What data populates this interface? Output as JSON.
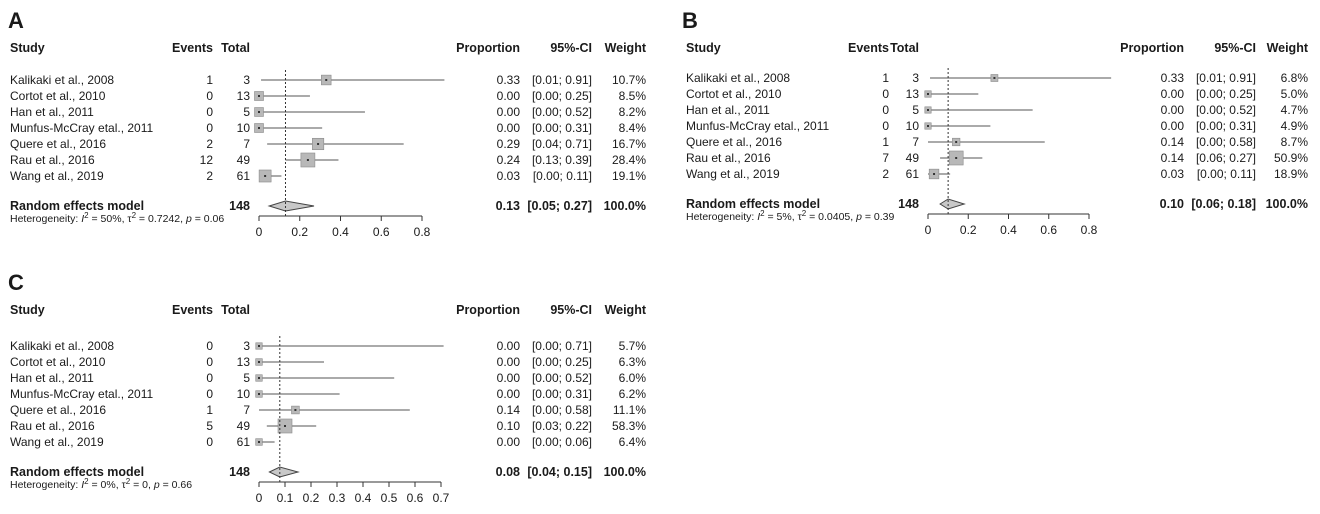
{
  "chart_data": [
    {
      "type": "forest",
      "label": "A",
      "headers": {
        "study": "Study",
        "events": "Events",
        "total": "Total",
        "proportion": "Proportion",
        "ci": "95%-CI",
        "weight": "Weight"
      },
      "xlim": [
        0,
        0.8
      ],
      "ticks": [
        "0",
        "0.2",
        "0.4",
        "0.6",
        "0.8"
      ],
      "studies": [
        {
          "study": "Kalikaki et al., 2008",
          "events": "1",
          "total": "3",
          "proportion": 0.33,
          "lower": 0.01,
          "upper": 0.91,
          "prop_text": "0.33",
          "ci_text": "[0.01; 0.91]",
          "weight": "10.7%"
        },
        {
          "study": "Cortot et al., 2010",
          "events": "0",
          "total": "13",
          "proportion": 0.0,
          "lower": 0.0,
          "upper": 0.25,
          "prop_text": "0.00",
          "ci_text": "[0.00; 0.25]",
          "weight": "8.5%"
        },
        {
          "study": "Han et al., 2011",
          "events": "0",
          "total": "5",
          "proportion": 0.0,
          "lower": 0.0,
          "upper": 0.52,
          "prop_text": "0.00",
          "ci_text": "[0.00; 0.52]",
          "weight": "8.2%"
        },
        {
          "study": "Munfus-McCray etal., 2011",
          "events": "0",
          "total": "10",
          "proportion": 0.0,
          "lower": 0.0,
          "upper": 0.31,
          "prop_text": "0.00",
          "ci_text": "[0.00; 0.31]",
          "weight": "8.4%"
        },
        {
          "study": "Quere et al., 2016",
          "events": "2",
          "total": "7",
          "proportion": 0.29,
          "lower": 0.04,
          "upper": 0.71,
          "prop_text": "0.29",
          "ci_text": "[0.04; 0.71]",
          "weight": "16.7%"
        },
        {
          "study": "Rau et al., 2016",
          "events": "12",
          "total": "49",
          "proportion": 0.24,
          "lower": 0.13,
          "upper": 0.39,
          "prop_text": "0.24",
          "ci_text": "[0.13; 0.39]",
          "weight": "28.4%"
        },
        {
          "study": "Wang et al., 2019",
          "events": "2",
          "total": "61",
          "proportion": 0.03,
          "lower": 0.0,
          "upper": 0.11,
          "prop_text": "0.03",
          "ci_text": "[0.00; 0.11]",
          "weight": "19.1%"
        }
      ],
      "pooled": {
        "label": "Random effects model",
        "total": "148",
        "estimate": 0.13,
        "lower": 0.05,
        "upper": 0.27,
        "prop_text": "0.13",
        "ci_text": "[0.05; 0.27]",
        "weight": "100.0%"
      },
      "heterogeneity": {
        "prefix": "Heterogeneity: ",
        "i2": "50%",
        "tau2": "0.7242",
        "p": "0.06"
      }
    },
    {
      "type": "forest",
      "label": "B",
      "headers": {
        "study": "Study",
        "events": "Events",
        "total": "Total",
        "proportion": "Proportion",
        "ci": "95%-CI",
        "weight": "Weight"
      },
      "xlim": [
        0,
        0.8
      ],
      "ticks": [
        "0",
        "0.2",
        "0.4",
        "0.6",
        "0.8"
      ],
      "studies": [
        {
          "study": "Kalikaki et al., 2008",
          "events": "1",
          "total": "3",
          "proportion": 0.33,
          "lower": 0.01,
          "upper": 0.91,
          "prop_text": "0.33",
          "ci_text": "[0.01; 0.91]",
          "weight": "6.8%"
        },
        {
          "study": "Cortot et al., 2010",
          "events": "0",
          "total": "13",
          "proportion": 0.0,
          "lower": 0.0,
          "upper": 0.25,
          "prop_text": "0.00",
          "ci_text": "[0.00; 0.25]",
          "weight": "5.0%"
        },
        {
          "study": "Han et al., 2011",
          "events": "0",
          "total": "5",
          "proportion": 0.0,
          "lower": 0.0,
          "upper": 0.52,
          "prop_text": "0.00",
          "ci_text": "[0.00; 0.52]",
          "weight": "4.7%"
        },
        {
          "study": "Munfus-McCray etal., 2011",
          "events": "0",
          "total": "10",
          "proportion": 0.0,
          "lower": 0.0,
          "upper": 0.31,
          "prop_text": "0.00",
          "ci_text": "[0.00; 0.31]",
          "weight": "4.9%"
        },
        {
          "study": "Quere et al., 2016",
          "events": "1",
          "total": "7",
          "proportion": 0.14,
          "lower": 0.0,
          "upper": 0.58,
          "prop_text": "0.14",
          "ci_text": "[0.00; 0.58]",
          "weight": "8.7%"
        },
        {
          "study": "Rau et al., 2016",
          "events": "7",
          "total": "49",
          "proportion": 0.14,
          "lower": 0.06,
          "upper": 0.27,
          "prop_text": "0.14",
          "ci_text": "[0.06; 0.27]",
          "weight": "50.9%"
        },
        {
          "study": "Wang et al., 2019",
          "events": "2",
          "total": "61",
          "proportion": 0.03,
          "lower": 0.0,
          "upper": 0.11,
          "prop_text": "0.03",
          "ci_text": "[0.00; 0.11]",
          "weight": "18.9%"
        }
      ],
      "pooled": {
        "label": "Random effects model",
        "total": "148",
        "estimate": 0.1,
        "lower": 0.06,
        "upper": 0.18,
        "prop_text": "0.10",
        "ci_text": "[0.06; 0.18]",
        "weight": "100.0%"
      },
      "heterogeneity": {
        "prefix": "Heterogeneity: ",
        "i2": "5%",
        "tau2": "0.0405",
        "p": "0.39"
      }
    },
    {
      "type": "forest",
      "label": "C",
      "headers": {
        "study": "Study",
        "events": "Events",
        "total": "Total",
        "proportion": "Proportion",
        "ci": "95%-CI",
        "weight": "Weight"
      },
      "xlim": [
        0,
        0.7
      ],
      "ticks": [
        "0",
        "0.1",
        "0.2",
        "0.3",
        "0.4",
        "0.5",
        "0.6",
        "0.7"
      ],
      "studies": [
        {
          "study": "Kalikaki et al., 2008",
          "events": "0",
          "total": "3",
          "proportion": 0.0,
          "lower": 0.0,
          "upper": 0.71,
          "prop_text": "0.00",
          "ci_text": "[0.00; 0.71]",
          "weight": "5.7%"
        },
        {
          "study": "Cortot et al., 2010",
          "events": "0",
          "total": "13",
          "proportion": 0.0,
          "lower": 0.0,
          "upper": 0.25,
          "prop_text": "0.00",
          "ci_text": "[0.00; 0.25]",
          "weight": "6.3%"
        },
        {
          "study": "Han et al., 2011",
          "events": "0",
          "total": "5",
          "proportion": 0.0,
          "lower": 0.0,
          "upper": 0.52,
          "prop_text": "0.00",
          "ci_text": "[0.00; 0.52]",
          "weight": "6.0%"
        },
        {
          "study": "Munfus-McCray etal., 2011",
          "events": "0",
          "total": "10",
          "proportion": 0.0,
          "lower": 0.0,
          "upper": 0.31,
          "prop_text": "0.00",
          "ci_text": "[0.00; 0.31]",
          "weight": "6.2%"
        },
        {
          "study": "Quere et al., 2016",
          "events": "1",
          "total": "7",
          "proportion": 0.14,
          "lower": 0.0,
          "upper": 0.58,
          "prop_text": "0.14",
          "ci_text": "[0.00; 0.58]",
          "weight": "11.1%"
        },
        {
          "study": "Rau et al., 2016",
          "events": "5",
          "total": "49",
          "proportion": 0.1,
          "lower": 0.03,
          "upper": 0.22,
          "prop_text": "0.10",
          "ci_text": "[0.03; 0.22]",
          "weight": "58.3%"
        },
        {
          "study": "Wang et al., 2019",
          "events": "0",
          "total": "61",
          "proportion": 0.0,
          "lower": 0.0,
          "upper": 0.06,
          "prop_text": "0.00",
          "ci_text": "[0.00; 0.06]",
          "weight": "6.4%"
        }
      ],
      "pooled": {
        "label": "Random effects model",
        "total": "148",
        "estimate": 0.08,
        "lower": 0.04,
        "upper": 0.15,
        "prop_text": "0.08",
        "ci_text": "[0.04; 0.15]",
        "weight": "100.0%"
      },
      "heterogeneity": {
        "prefix": "Heterogeneity: ",
        "i2": "0%",
        "tau2": "0",
        "p": "0.66"
      }
    }
  ]
}
